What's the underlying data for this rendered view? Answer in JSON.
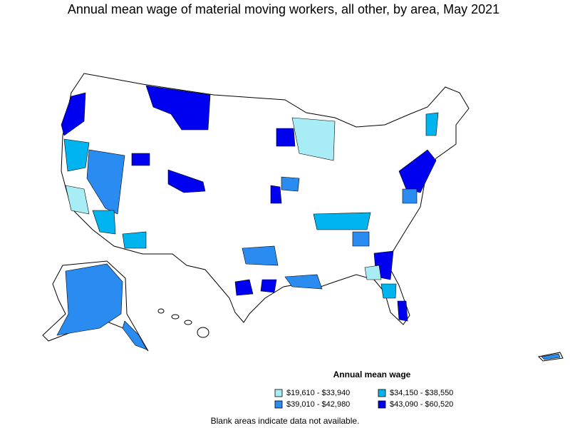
{
  "title": "Annual mean wage of material moving workers, all other, by area, May 2021",
  "legend": {
    "title": "Annual mean wage",
    "items": [
      {
        "label": "$19,610 - $33,940",
        "color": "#a8ecf5"
      },
      {
        "label": "$34,150 - $38,550",
        "color": "#00b4f0"
      },
      {
        "label": "$39,010 - $42,980",
        "color": "#2a8cf0"
      },
      {
        "label": "$43,090 - $60,520",
        "color": "#0000f0"
      }
    ]
  },
  "footnote": "Blank areas indicate data not available."
}
